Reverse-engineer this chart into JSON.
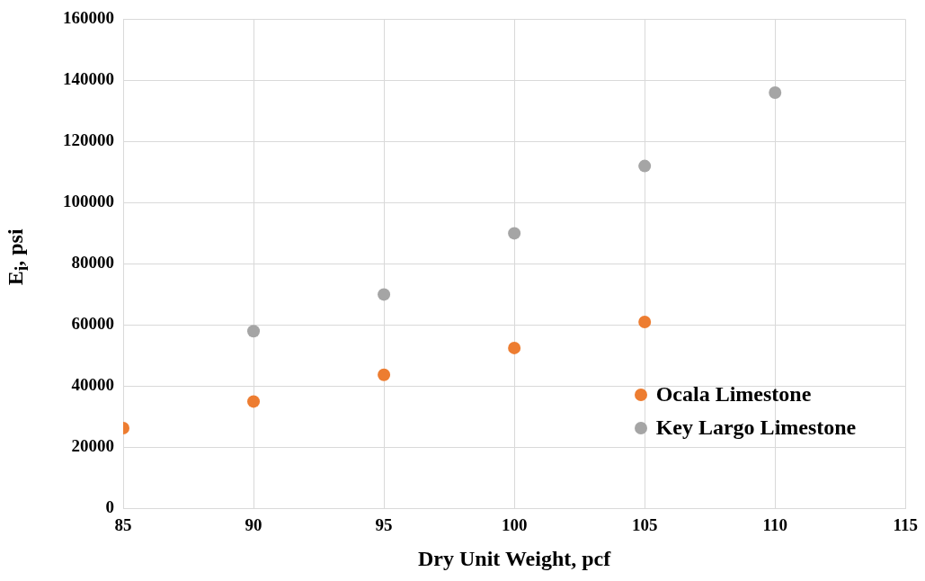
{
  "chart_data": {
    "type": "scatter",
    "xlabel": "Dry Unit Weight, pcf",
    "ylabel": "E$_{i}$, psi",
    "series": [
      {
        "name": "Ocala Limestone",
        "color": "#ed7d31",
        "x": [
          85,
          90,
          95,
          100,
          105
        ],
        "values": [
          26300,
          35000,
          43700,
          52500,
          61000
        ]
      },
      {
        "name": "Key Largo Limestone",
        "color": "#a5a5a5",
        "x": [
          90,
          95,
          100,
          105,
          110
        ],
        "values": [
          58000,
          70000,
          90000,
          112000,
          136000
        ]
      }
    ],
    "xlim": [
      85,
      115
    ],
    "xticks": [
      85,
      90,
      95,
      100,
      105,
      110,
      115
    ],
    "ylim": [
      0,
      160000
    ],
    "yticks": [
      0,
      20000,
      40000,
      60000,
      80000,
      100000,
      120000,
      140000,
      160000
    ],
    "grid": true,
    "legend": "bottom right",
    "marker": "circle"
  }
}
